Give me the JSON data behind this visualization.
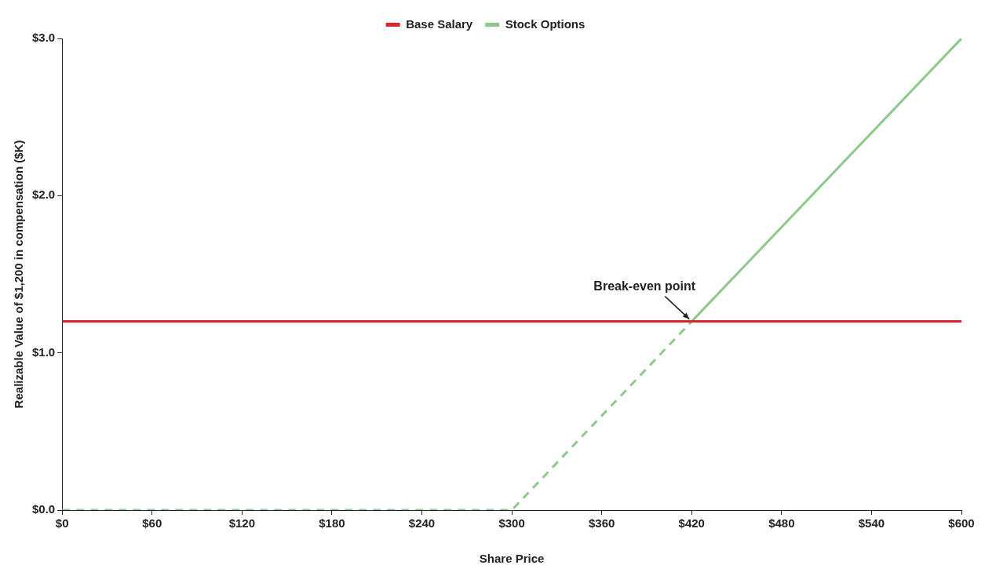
{
  "chart_data": {
    "type": "line",
    "xlabel": "Share Price",
    "ylabel": "Realizable Value of $1,200 in compensation ($K)",
    "series": [
      {
        "name": "Base Salary",
        "color": "#d7282f",
        "x": [
          0,
          600
        ],
        "values": [
          1.2,
          1.2
        ],
        "line_style": "solid"
      },
      {
        "name": "Stock Options",
        "color": "#8cc98a",
        "x": [
          420,
          600
        ],
        "values": [
          1.2,
          3.0
        ],
        "line_style": "solid"
      },
      {
        "color": "#8cc98a",
        "x": [
          0,
          300,
          420
        ],
        "values": [
          0,
          0,
          1.2
        ],
        "line_style": "dashed"
      }
    ],
    "xlim": [
      0,
      600
    ],
    "xticks": [
      {
        "value": 0,
        "label": "$0"
      },
      {
        "value": 60,
        "label": "$60"
      },
      {
        "value": 120,
        "label": "$120"
      },
      {
        "value": 180,
        "label": "$180"
      },
      {
        "value": 240,
        "label": "$240"
      },
      {
        "value": 300,
        "label": "$300"
      },
      {
        "value": 360,
        "label": "$360"
      },
      {
        "value": 420,
        "label": "$420"
      },
      {
        "value": 480,
        "label": "$480"
      },
      {
        "value": 540,
        "label": "$540"
      },
      {
        "value": 600,
        "label": "$600"
      }
    ],
    "ylim": [
      0,
      3
    ],
    "yticks": [
      {
        "value": 0,
        "label": "$0.0"
      },
      {
        "value": 1,
        "label": "$1.0"
      },
      {
        "value": 2,
        "label": "$2.0"
      },
      {
        "value": 3,
        "label": "$3.0"
      }
    ],
    "annotations": [
      {
        "text": "Break-even point",
        "x": 420,
        "y": 1.2
      }
    ],
    "grid": false,
    "legend": "top",
    "marker": "none"
  }
}
